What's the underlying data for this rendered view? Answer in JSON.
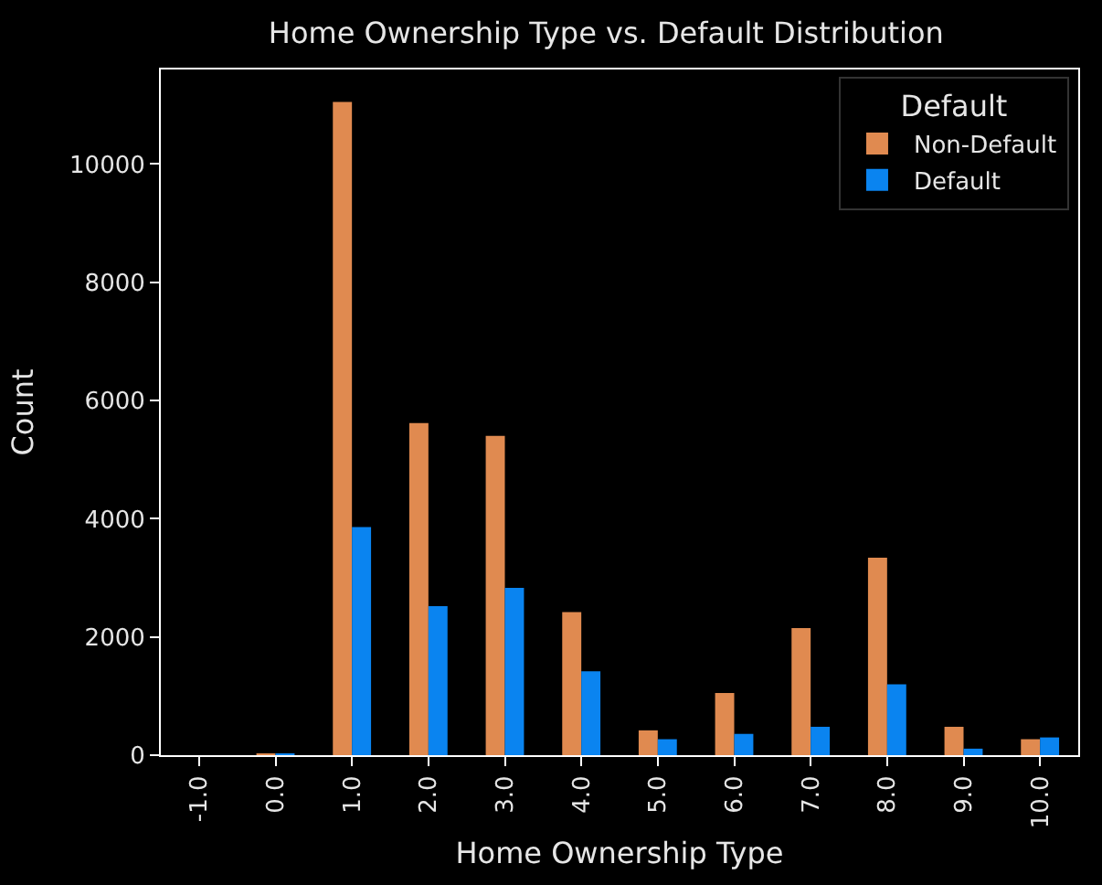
{
  "chart_data": {
    "type": "bar",
    "title": "Home Ownership Type vs. Default Distribution",
    "xlabel": "Home Ownership Type",
    "ylabel": "Count",
    "legend_title": "Default",
    "categories": [
      "-1.0",
      "0.0",
      "1.0",
      "2.0",
      "3.0",
      "4.0",
      "5.0",
      "6.0",
      "7.0",
      "8.0",
      "9.0",
      "10.0"
    ],
    "series": [
      {
        "name": "Non-Default",
        "color": "#e08a50",
        "values": [
          0,
          30,
          11050,
          5620,
          5400,
          2420,
          420,
          1050,
          2150,
          3340,
          480,
          270
        ]
      },
      {
        "name": "Default",
        "color": "#0a84f0",
        "values": [
          0,
          20,
          3860,
          2520,
          2830,
          1420,
          270,
          360,
          480,
          1200,
          110,
          300
        ]
      }
    ],
    "ylim": [
      0,
      11600
    ],
    "yticks": [
      0,
      2000,
      4000,
      6000,
      8000,
      10000
    ],
    "grid": false,
    "legend": "top right"
  }
}
